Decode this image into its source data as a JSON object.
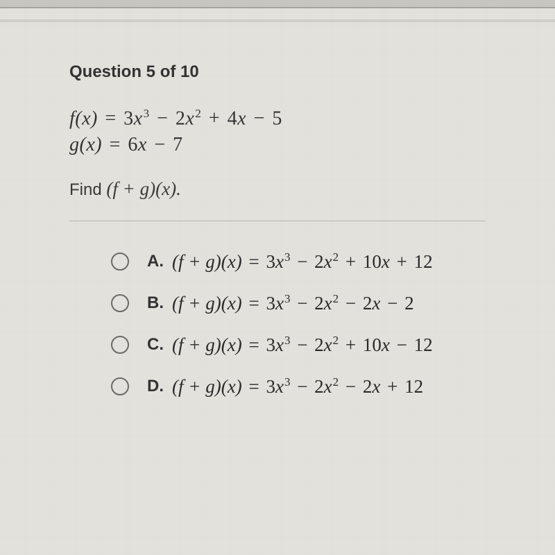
{
  "question": {
    "title": "Question 5 of 10",
    "line1_html": "<i>f</i>(<i>x</i>) <span class='op'>=</span> <span class='num'>3</span><i>x</i><sup>3</sup> <span class='op'>−</span> <span class='num'>2</span><i>x</i><sup>2</sup> <span class='op'>+</span> <span class='num'>4</span><i>x</i> <span class='op'>−</span> <span class='num'>5</span>",
    "line2_html": "<i>g</i>(<i>x</i>) <span class='op'>=</span> <span class='num'>6</span><i>x</i> <span class='op'>−</span> <span class='num'>7</span>",
    "prompt_prefix": "Find ",
    "prompt_math_html": "(<i>f </i>+ <i>g</i>)(<i>x</i>).",
    "options": [
      {
        "label": "A.",
        "math_html": "(<i>f </i>+ <i>g</i>)(<i>x</i>) <span class='op'>=</span> <span class='num'>3</span><i>x</i><sup>3</sup> <span class='op'>−</span> <span class='num'>2</span><i>x</i><sup>2</sup> <span class='op'>+</span> <span class='num'>10</span><i>x</i> <span class='op'>+</span> <span class='num'>12</span>"
      },
      {
        "label": "B.",
        "math_html": "(<i>f </i>+ <i>g</i>)(<i>x</i>) <span class='op'>=</span> <span class='num'>3</span><i>x</i><sup>3</sup> <span class='op'>−</span> <span class='num'>2</span><i>x</i><sup>2</sup> <span class='op'>−</span> <span class='num'>2</span><i>x</i> <span class='op'>−</span> <span class='num'>2</span>"
      },
      {
        "label": "C.",
        "math_html": "(<i>f </i>+ <i>g</i>)(<i>x</i>) <span class='op'>=</span> <span class='num'>3</span><i>x</i><sup>3</sup> <span class='op'>−</span> <span class='num'>2</span><i>x</i><sup>2</sup> <span class='op'>+</span> <span class='num'>10</span><i>x</i> <span class='op'>−</span> <span class='num'>12</span>"
      },
      {
        "label": "D.",
        "math_html": "(<i>f </i>+ <i>g</i>)(<i>x</i>) <span class='op'>=</span> <span class='num'>3</span><i>x</i><sup>3</sup> <span class='op'>−</span> <span class='num'>2</span><i>x</i><sup>2</sup> <span class='op'>−</span> <span class='num'>2</span><i>x</i> <span class='op'>+</span> <span class='num'>12</span>"
      }
    ]
  },
  "style": {
    "background_color": "#e3e2dd",
    "text_color": "#3a3a38",
    "title_fontsize": 24,
    "math_fontsize": 28,
    "option_math_fontsize": 27,
    "radio_border_color": "#6a6a68",
    "divider_color": "#b8b7b3"
  }
}
